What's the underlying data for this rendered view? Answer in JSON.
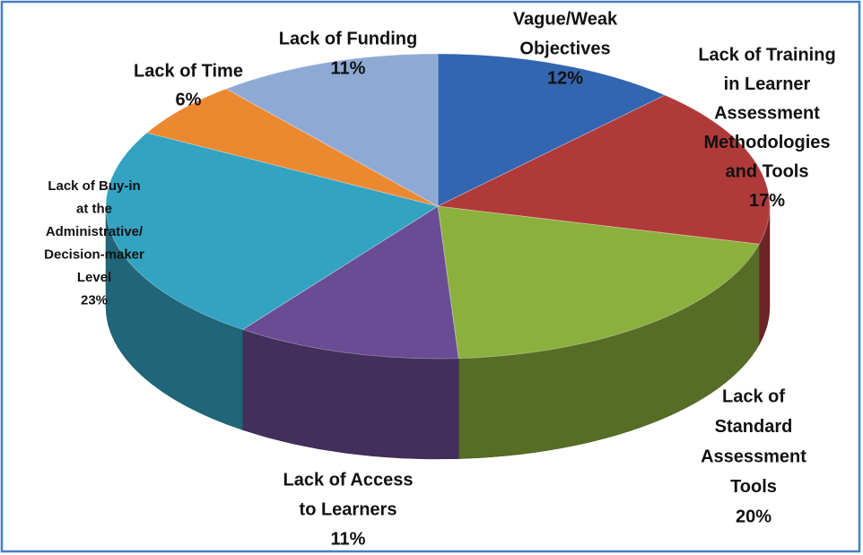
{
  "chart_data": {
    "type": "pie",
    "categories": [
      [
        "Vague/Weak",
        "Objectives"
      ],
      [
        "Lack of Training",
        "in Learner",
        "Assessment",
        "Methodologies",
        "and Tools"
      ],
      [
        "Lack of",
        "Standard",
        "Assessment",
        "Tools"
      ],
      [
        "Lack of Access",
        "to Learners"
      ],
      [
        "Lack of Buy-in",
        "at the",
        "Administrative/",
        "Decision-maker",
        "Level"
      ],
      [
        "Lack of Time"
      ],
      [
        "Lack of Funding"
      ]
    ],
    "values": [
      12,
      17,
      20,
      11,
      23,
      6,
      11
    ],
    "value_labels": [
      "12%",
      "17%",
      "20%",
      "11%",
      "23%",
      "6%",
      "11%"
    ],
    "colors": [
      "#3366b0",
      "#b03a3a",
      "#8cb03e",
      "#6a4c94",
      "#33a3c2",
      "#ec8830",
      "#8ea9d4"
    ]
  }
}
